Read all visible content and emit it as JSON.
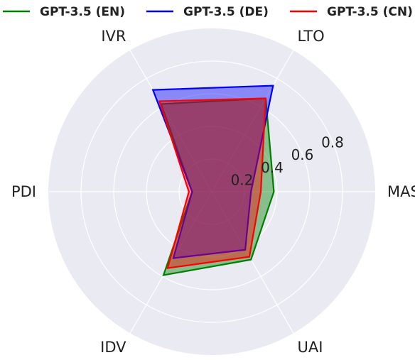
{
  "chart_data": {
    "type": "radar",
    "categories": [
      "MAS",
      "LTO",
      "IVR",
      "PDI",
      "IDV",
      "UAI"
    ],
    "radial_ticks": [
      "0.2",
      "0.4",
      "0.6",
      "0.8"
    ],
    "radial_tick_values": [
      0.2,
      0.4,
      0.6,
      0.8
    ],
    "rlim": [
      0,
      1.0
    ],
    "grid": true,
    "legend_position": "top",
    "series": [
      {
        "name": "GPT-3.5 (EN)",
        "values": [
          0.38,
          0.66,
          0.62,
          0.12,
          0.59,
          0.48
        ],
        "color": "#008000"
      },
      {
        "name": "GPT-3.5 (DE)",
        "values": [
          0.24,
          0.75,
          0.72,
          0.12,
          0.47,
          0.41
        ],
        "color": "#0000ff"
      },
      {
        "name": "GPT-3.5 (CN)",
        "values": [
          0.3,
          0.66,
          0.64,
          0.14,
          0.54,
          0.46
        ],
        "color": "#ff0000"
      }
    ]
  },
  "colors": {
    "background": "#eaeaf2",
    "grid": "#ffffff"
  }
}
